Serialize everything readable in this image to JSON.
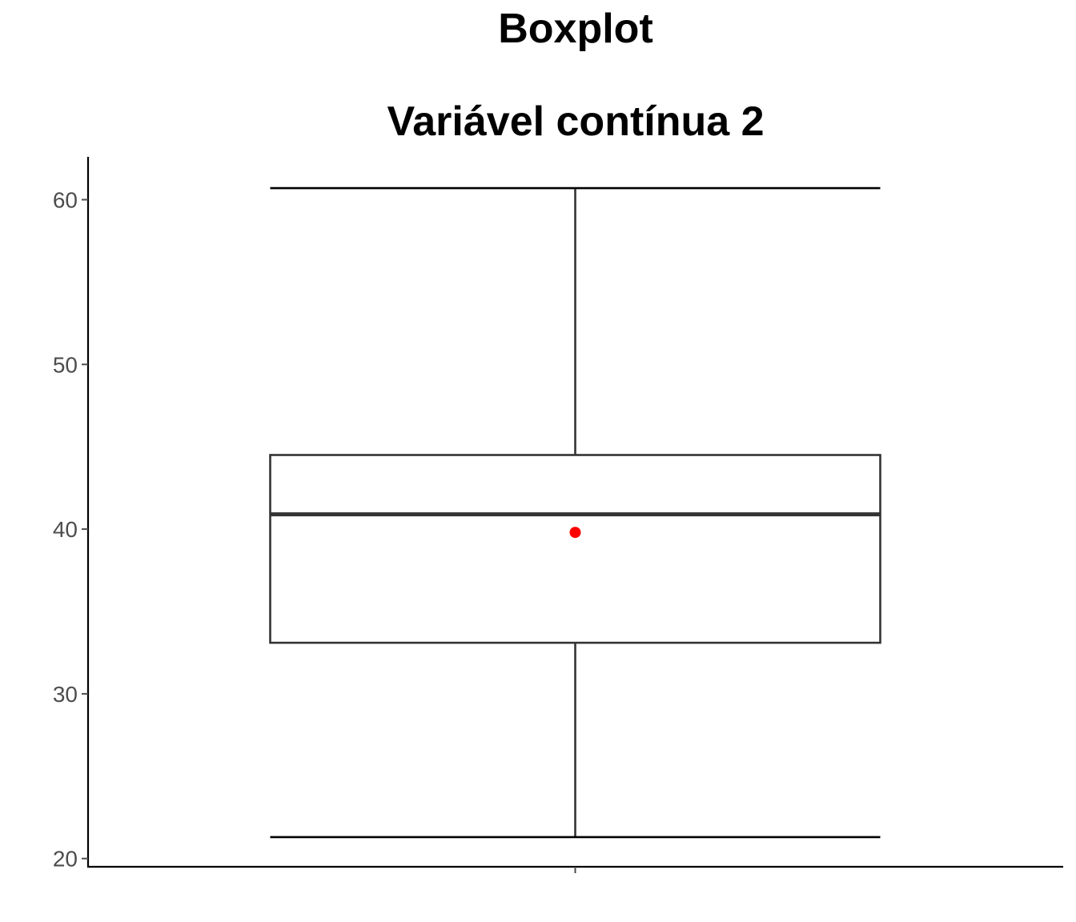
{
  "chart_data": {
    "type": "boxplot",
    "title": "Boxplot",
    "subtitle": "Variável contínua 2",
    "xlabel": "",
    "ylabel": "",
    "ylim": [
      19.5,
      62.6
    ],
    "yticks": [
      20,
      30,
      40,
      50,
      60
    ],
    "grid": false,
    "legend": "none",
    "box": {
      "whisker_low": 21.3,
      "q1": 33.1,
      "median": 40.9,
      "q3": 44.5,
      "whisker_high": 60.7,
      "mean": 39.8
    },
    "colors": {
      "box_line": "#333333",
      "mean_point": "#ff0000",
      "axis": "#000000",
      "tick_text": "#4d4d4d"
    }
  }
}
